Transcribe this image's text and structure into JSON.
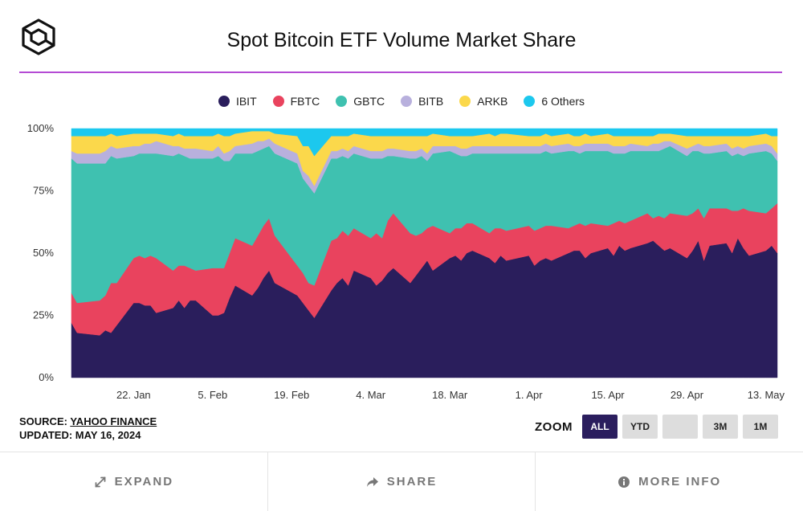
{
  "header": {
    "title": "Spot Bitcoin ETF Volume Market Share"
  },
  "legend": [
    {
      "label": "IBIT",
      "color": "#2a1e5c"
    },
    {
      "label": "FBTC",
      "color": "#e9435e"
    },
    {
      "label": "GBTC",
      "color": "#3fc1b0"
    },
    {
      "label": "BITB",
      "color": "#b8b0dd"
    },
    {
      "label": "ARKB",
      "color": "#fbd84b"
    },
    {
      "label": "6 Others",
      "color": "#1cc8ee"
    }
  ],
  "source": {
    "prefix": "SOURCE: ",
    "link": "YAHOO FINANCE",
    "updated": "UPDATED: MAY 16, 2024"
  },
  "zoom": {
    "label": "ZOOM",
    "buttons": [
      "ALL",
      "YTD",
      "",
      "3M",
      "1M"
    ],
    "active": "ALL"
  },
  "footer": {
    "expand": "EXPAND",
    "share": "SHARE",
    "more_info": "MORE INFO"
  },
  "chart_data": {
    "type": "area",
    "stacked": true,
    "title": "Spot Bitcoin ETF Volume Market Share",
    "y_ticks": [
      "0%",
      "25%",
      "50%",
      "75%",
      "100%"
    ],
    "ylim": [
      0,
      100
    ],
    "x_ticks": [
      "22. Jan",
      "5. Feb",
      "19. Feb",
      "4. Mar",
      "18. Mar",
      "1. Apr",
      "15. Apr",
      "29. Apr",
      "13. May"
    ],
    "x_tick_dates": [
      "2024-01-22",
      "2024-02-05",
      "2024-02-19",
      "2024-03-04",
      "2024-03-18",
      "2024-04-01",
      "2024-04-15",
      "2024-04-29",
      "2024-05-13"
    ],
    "grid": true,
    "legend_position": "top-center",
    "dates": [
      "2024-01-11",
      "2024-01-12",
      "2024-01-16",
      "2024-01-17",
      "2024-01-18",
      "2024-01-19",
      "2024-01-22",
      "2024-01-23",
      "2024-01-24",
      "2024-01-25",
      "2024-01-26",
      "2024-01-29",
      "2024-01-30",
      "2024-01-31",
      "2024-02-01",
      "2024-02-02",
      "2024-02-05",
      "2024-02-06",
      "2024-02-07",
      "2024-02-08",
      "2024-02-09",
      "2024-02-12",
      "2024-02-13",
      "2024-02-14",
      "2024-02-15",
      "2024-02-16",
      "2024-02-20",
      "2024-02-21",
      "2024-02-22",
      "2024-02-23",
      "2024-02-26",
      "2024-02-27",
      "2024-02-28",
      "2024-02-29",
      "2024-03-01",
      "2024-03-04",
      "2024-03-05",
      "2024-03-06",
      "2024-03-07",
      "2024-03-08",
      "2024-03-11",
      "2024-03-12",
      "2024-03-13",
      "2024-03-14",
      "2024-03-15",
      "2024-03-18",
      "2024-03-19",
      "2024-03-20",
      "2024-03-21",
      "2024-03-22",
      "2024-03-25",
      "2024-03-26",
      "2024-03-27",
      "2024-03-28",
      "2024-04-01",
      "2024-04-02",
      "2024-04-03",
      "2024-04-04",
      "2024-04-05",
      "2024-04-08",
      "2024-04-09",
      "2024-04-10",
      "2024-04-11",
      "2024-04-12",
      "2024-04-15",
      "2024-04-16",
      "2024-04-17",
      "2024-04-18",
      "2024-04-19",
      "2024-04-22",
      "2024-04-23",
      "2024-04-24",
      "2024-04-25",
      "2024-04-26",
      "2024-04-29",
      "2024-04-30",
      "2024-05-01",
      "2024-05-02",
      "2024-05-03",
      "2024-05-06",
      "2024-05-07",
      "2024-05-08",
      "2024-05-09",
      "2024-05-10",
      "2024-05-13",
      "2024-05-14",
      "2024-05-15"
    ],
    "series": [
      {
        "name": "IBIT",
        "values": [
          22,
          18,
          17,
          19,
          18,
          21,
          30,
          30,
          29,
          29,
          26,
          28,
          31,
          28,
          31,
          31,
          25,
          25,
          26,
          32,
          37,
          33,
          36,
          40,
          43,
          38,
          33,
          30,
          27,
          24,
          35,
          38,
          40,
          37,
          43,
          40,
          37,
          39,
          42,
          44,
          38,
          41,
          44,
          47,
          43,
          48,
          49,
          47,
          50,
          51,
          48,
          46,
          49,
          47,
          49,
          45,
          47,
          48,
          47,
          50,
          51,
          51,
          48,
          50,
          52,
          49,
          53,
          51,
          52,
          54,
          55,
          53,
          51,
          52,
          48,
          51,
          55,
          47,
          53,
          54,
          50,
          56,
          52,
          49,
          51,
          53,
          50
        ]
      },
      {
        "name": "FBTC",
        "values": [
          12,
          12,
          14,
          14,
          20,
          17,
          18,
          19,
          19,
          20,
          22,
          15,
          14,
          17,
          13,
          12,
          19,
          19,
          18,
          18,
          19,
          20,
          21,
          21,
          21,
          19,
          12,
          12,
          11,
          13,
          20,
          18,
          19,
          20,
          17,
          16,
          21,
          17,
          21,
          22,
          20,
          16,
          14,
          13,
          18,
          10,
          11,
          13,
          12,
          11,
          10,
          14,
          11,
          12,
          12,
          14,
          13,
          13,
          14,
          10,
          10,
          11,
          13,
          12,
          9,
          13,
          10,
          11,
          11,
          12,
          9,
          12,
          13,
          14,
          17,
          15,
          13,
          17,
          15,
          14,
          17,
          11,
          16,
          18,
          15,
          15,
          20
        ]
      },
      {
        "name": "GBTC",
        "values": [
          54,
          56,
          55,
          53,
          51,
          50,
          41,
          41,
          42,
          41,
          42,
          46,
          45,
          44,
          44,
          45,
          44,
          45,
          43,
          37,
          34,
          37,
          34,
          31,
          29,
          33,
          41,
          38,
          39,
          37,
          33,
          32,
          30,
          31,
          30,
          32,
          30,
          32,
          26,
          23,
          30,
          31,
          31,
          27,
          29,
          33,
          30,
          29,
          27,
          28,
          32,
          30,
          30,
          31,
          29,
          31,
          30,
          30,
          29,
          31,
          30,
          28,
          30,
          29,
          30,
          28,
          27,
          28,
          28,
          25,
          27,
          26,
          28,
          27,
          24,
          25,
          23,
          26,
          22,
          23,
          22,
          23,
          21,
          23,
          25,
          22,
          17
        ]
      },
      {
        "name": "BITB",
        "values": [
          3,
          4,
          4,
          5,
          4,
          4,
          4,
          3,
          4,
          4,
          5,
          4,
          3,
          3,
          4,
          4,
          3,
          4,
          3,
          4,
          3,
          4,
          4,
          3,
          3,
          4,
          4,
          3,
          4,
          3,
          3,
          3,
          3,
          3,
          3,
          3,
          3,
          3,
          3,
          3,
          3,
          3,
          3,
          3,
          3,
          2,
          3,
          3,
          3,
          3,
          3,
          3,
          3,
          3,
          3,
          3,
          3,
          3,
          3,
          3,
          2,
          3,
          3,
          3,
          3,
          3,
          3,
          3,
          3,
          2,
          3,
          3,
          3,
          2,
          3,
          2,
          3,
          3,
          3,
          3,
          3,
          3,
          3,
          3,
          3,
          3,
          3
        ]
      },
      {
        "name": "ARKB",
        "values": [
          6,
          7,
          7,
          6,
          5,
          5,
          5,
          5,
          4,
          4,
          3,
          4,
          5,
          5,
          5,
          5,
          6,
          5,
          7,
          6,
          5,
          5,
          4,
          4,
          3,
          4,
          7,
          10,
          12,
          12,
          6,
          6,
          5,
          6,
          5,
          6,
          6,
          6,
          5,
          5,
          6,
          6,
          5,
          7,
          5,
          4,
          4,
          5,
          5,
          4,
          5,
          4,
          5,
          5,
          4,
          4,
          4,
          4,
          4,
          4,
          4,
          4,
          4,
          3,
          4,
          4,
          4,
          4,
          3,
          4,
          3,
          4,
          3,
          3,
          5,
          4,
          3,
          4,
          4,
          3,
          5,
          4,
          5,
          4,
          4,
          4,
          7
        ]
      },
      {
        "name": "6 Others",
        "values": [
          3,
          3,
          3,
          3,
          2,
          3,
          2,
          2,
          2,
          2,
          2,
          3,
          2,
          3,
          3,
          3,
          3,
          2,
          3,
          3,
          2,
          1,
          1,
          1,
          1,
          2,
          3,
          7,
          7,
          11,
          3,
          3,
          3,
          3,
          2,
          3,
          3,
          3,
          3,
          3,
          3,
          3,
          3,
          3,
          2,
          3,
          3,
          3,
          3,
          3,
          2,
          3,
          2,
          2,
          3,
          3,
          3,
          2,
          3,
          2,
          3,
          3,
          2,
          3,
          2,
          3,
          3,
          3,
          3,
          3,
          3,
          2,
          2,
          2,
          3,
          3,
          3,
          3,
          3,
          3,
          3,
          3,
          3,
          3,
          2,
          3,
          3
        ]
      }
    ]
  }
}
